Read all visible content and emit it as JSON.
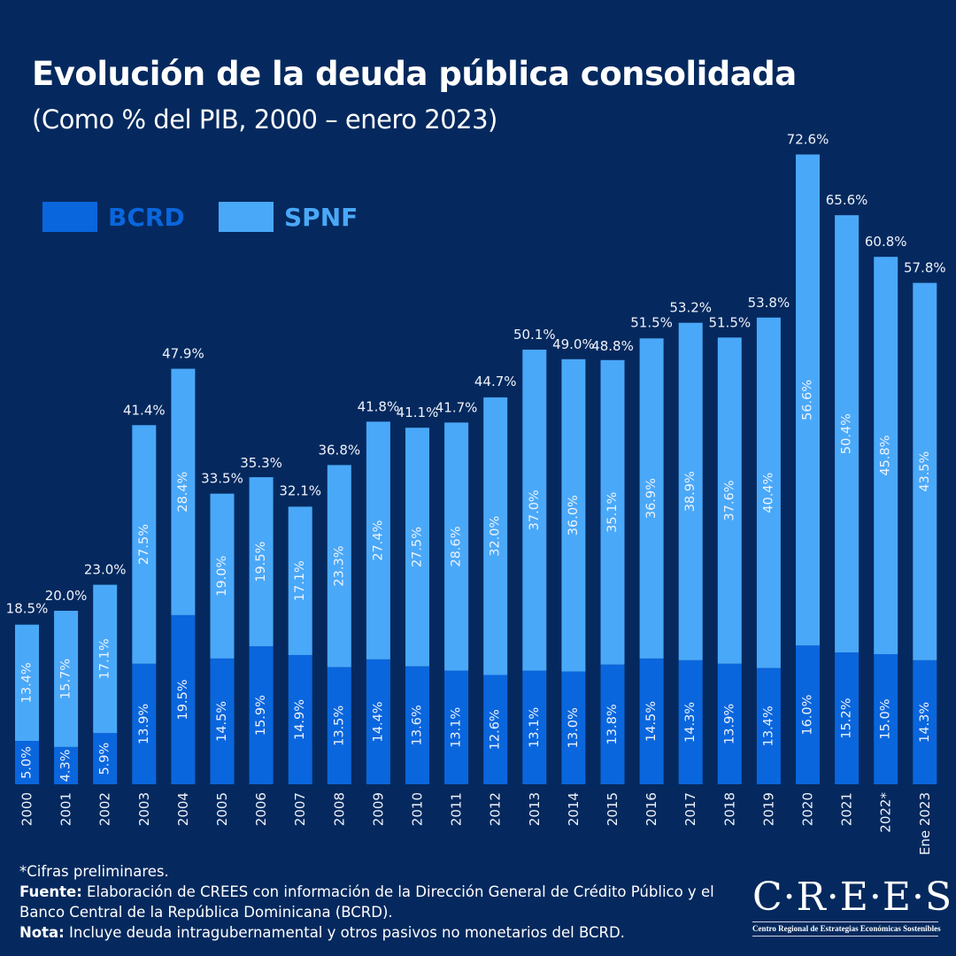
{
  "title": "Evolución de la deuda pública consolidada",
  "subtitle": "(Como % del PIB, 2000 – enero 2023)",
  "notes": {
    "preliminary": "*Cifras preliminares.",
    "source_label": "Fuente:",
    "source_text": " Elaboración de CREES con información de la Dirección General de Crédito Público y el Banco Central de la República Dominicana (BCRD).",
    "note_label": "Nota:",
    "note_text": " Incluye deuda intragubernamental y otros pasivos no monetarios del BCRD."
  },
  "logo": {
    "name": "C·R·E·E·S",
    "tagline": "Centro Regional de Estrategias Económicas Sostenibles"
  },
  "chart_data": {
    "type": "bar",
    "stacked": true,
    "title": "Evolución de la deuda pública consolidada",
    "categories": [
      "2000",
      "2001",
      "2002",
      "2003",
      "2004",
      "2005",
      "2006",
      "2007",
      "2008",
      "2009",
      "2010",
      "2011",
      "2012",
      "2013",
      "2014",
      "2015",
      "2016",
      "2017",
      "2018",
      "2019",
      "2020",
      "2021",
      "2022*",
      "Ene 2023"
    ],
    "series": [
      {
        "name": "BCRD",
        "color": "#0a66dd",
        "values": [
          5.0,
          4.3,
          5.9,
          13.9,
          19.5,
          14.5,
          15.9,
          14.9,
          13.5,
          14.4,
          13.6,
          13.1,
          12.6,
          13.1,
          13.0,
          13.8,
          14.5,
          14.3,
          13.9,
          13.4,
          16.0,
          15.2,
          15.0,
          14.3
        ]
      },
      {
        "name": "SPNF",
        "color": "#4aa8f8",
        "values": [
          13.4,
          15.7,
          17.1,
          27.5,
          28.4,
          19.0,
          19.5,
          17.1,
          23.3,
          27.4,
          27.5,
          28.6,
          32.0,
          37.0,
          36.0,
          35.1,
          36.9,
          38.9,
          37.6,
          40.4,
          56.6,
          50.4,
          45.8,
          43.5
        ]
      }
    ],
    "totals": [
      18.5,
      20.0,
      23.0,
      41.4,
      47.9,
      33.5,
      35.3,
      32.1,
      36.8,
      41.8,
      41.1,
      41.7,
      44.7,
      50.1,
      49.0,
      48.8,
      51.5,
      53.2,
      51.5,
      53.8,
      72.6,
      65.6,
      60.8,
      57.8
    ],
    "value_suffix": "%",
    "legend_position": "top-left",
    "grid": false,
    "ylim": [
      0,
      75
    ]
  }
}
